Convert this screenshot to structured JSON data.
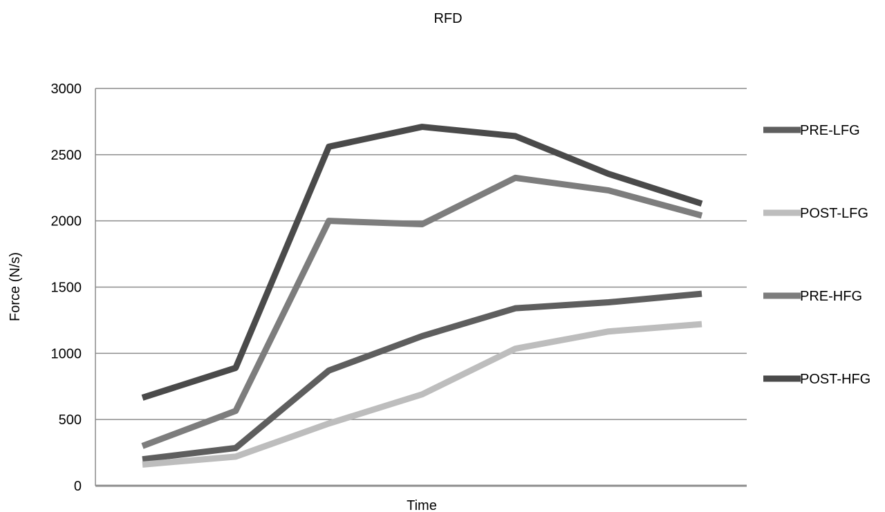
{
  "chart_data": {
    "type": "line",
    "title": "RFD",
    "xlabel": "Time",
    "ylabel": "Force (N/s)",
    "ylim": [
      0,
      3000
    ],
    "yticks": [
      "0",
      "500",
      "1000",
      "1500",
      "2000",
      "2500",
      "3000"
    ],
    "grid": true,
    "legend_position": "right",
    "x_count": 7,
    "series": [
      {
        "name": "PRE-LFG",
        "color": "#5e5e5e",
        "values": [
          200,
          285,
          870,
          1130,
          1340,
          1385,
          1450
        ]
      },
      {
        "name": "POST-LFG",
        "color": "#bdbdbd",
        "values": [
          160,
          220,
          470,
          690,
          1035,
          1165,
          1220
        ]
      },
      {
        "name": "PRE-HFG",
        "color": "#7d7d7d",
        "values": [
          300,
          565,
          2000,
          1975,
          2325,
          2230,
          2040
        ]
      },
      {
        "name": "POST-HFG",
        "color": "#4a4a4a",
        "values": [
          665,
          890,
          2560,
          2710,
          2640,
          2355,
          2130
        ]
      }
    ]
  }
}
